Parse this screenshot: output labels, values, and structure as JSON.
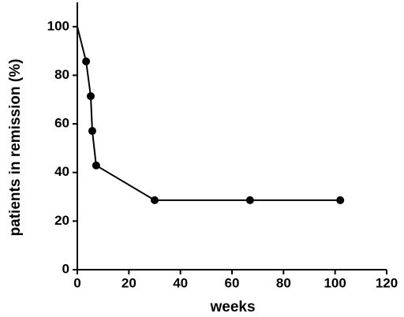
{
  "chart_data": {
    "type": "line",
    "x_label": "weeks",
    "y_label": "patients in remission (%)",
    "x": [
      0,
      3.4,
      5.2,
      5.8,
      7.3,
      30,
      67,
      102
    ],
    "series": [
      {
        "values": [
          100,
          85.7,
          71.4,
          57.1,
          42.9,
          28.6,
          28.6,
          28.6
        ],
        "color": "#000000",
        "markers": [
          false,
          true,
          true,
          true,
          true,
          true,
          true,
          true
        ]
      }
    ],
    "xlim": [
      0,
      120
    ],
    "xticks": [
      0,
      20,
      40,
      60,
      80,
      100,
      120
    ],
    "ylim": [
      0,
      110
    ],
    "yticks": [
      0,
      20,
      40,
      60,
      80,
      100
    ],
    "grid": false
  }
}
